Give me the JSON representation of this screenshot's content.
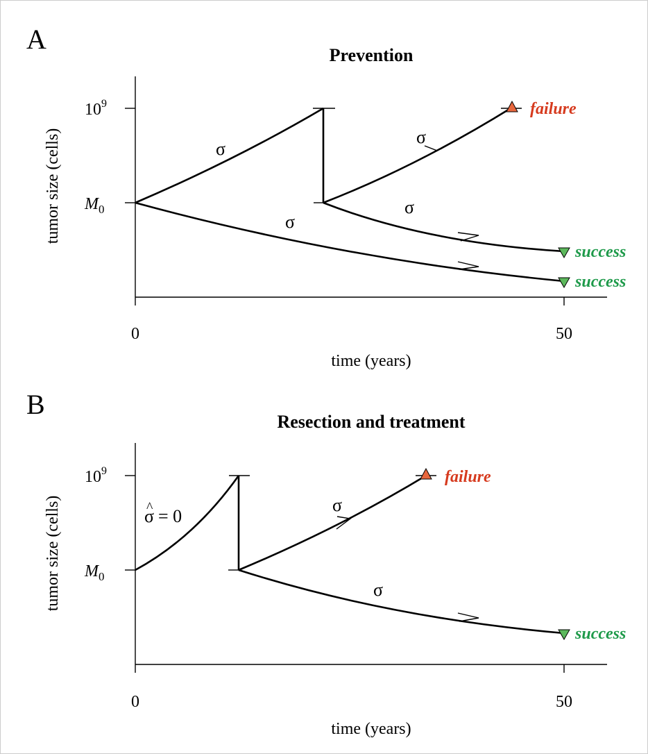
{
  "colors": {
    "failure": "#d63a1e",
    "failure_marker": "#e8673e",
    "success": "#1e9a4a",
    "success_marker": "#5cb85c"
  },
  "panel_a": {
    "letter": "A",
    "title": "Prevention",
    "y_axis_label": "tumor size (cells)",
    "x_axis_label": "time (years)",
    "y_tick_top_base": "10",
    "y_tick_top_exp": "9",
    "y_tick_bottom_var": "M",
    "y_tick_bottom_sub": "0",
    "x_tick_start": "0",
    "x_tick_end": "50",
    "branch_label": "σ",
    "failure_label": "failure",
    "success_label": "success"
  },
  "panel_b": {
    "letter": "B",
    "title": "Resection and treatment",
    "y_axis_label": "tumor size (cells)",
    "x_axis_label": "time (years)",
    "y_tick_top_base": "10",
    "y_tick_top_exp": "9",
    "y_tick_bottom_var": "M",
    "y_tick_bottom_sub": "0",
    "x_tick_start": "0",
    "x_tick_end": "50",
    "first_phase_label_hat": "^",
    "first_phase_label_sigma": "σ",
    "first_phase_label_eq": "= 0",
    "branch_label": "σ",
    "failure_label": "failure",
    "success_label": "success"
  }
}
